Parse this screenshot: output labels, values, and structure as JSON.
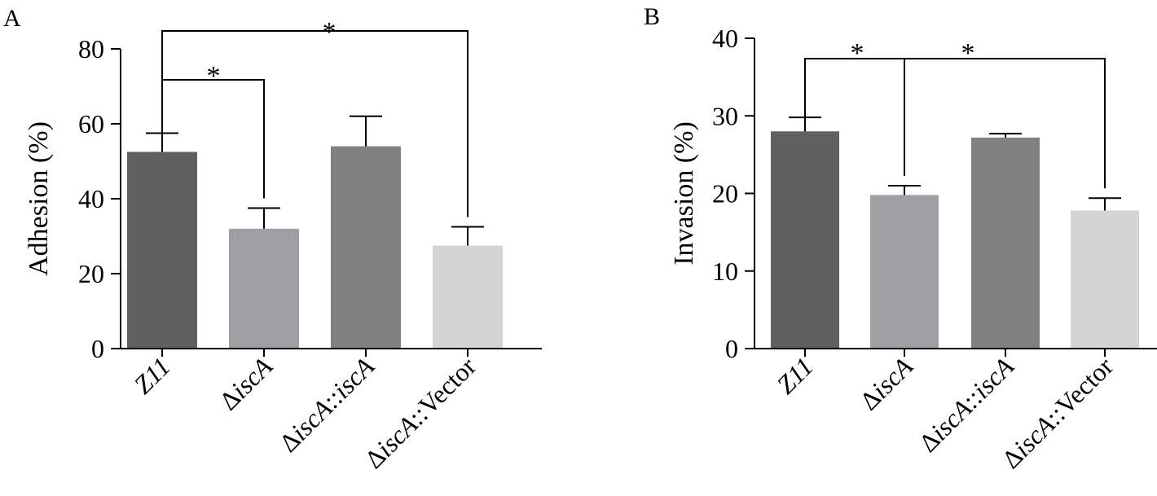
{
  "chart_data": [
    {
      "type": "bar",
      "panel_label": "A",
      "ylabel": "Adhesion (%)",
      "ylim": [
        0,
        80
      ],
      "yticks": [
        0,
        20,
        40,
        60,
        80
      ],
      "categories": [
        "Z11",
        "ΔiscA",
        "ΔiscA::iscA",
        "ΔiscA::Vector"
      ],
      "values": [
        52.5,
        32,
        54,
        27.5
      ],
      "errors": [
        5,
        5.5,
        8,
        5
      ],
      "colors": [
        "#606060",
        "#a0a0a4",
        "#808080",
        "#d4d4d4"
      ],
      "significance": [
        {
          "from": 0,
          "to": 1,
          "label": "*"
        },
        {
          "from": 0,
          "to": 3,
          "label": "*"
        }
      ]
    },
    {
      "type": "bar",
      "panel_label": "B",
      "ylabel": "Invasion (%)",
      "ylim": [
        0,
        40
      ],
      "yticks": [
        0,
        10,
        20,
        30,
        40
      ],
      "categories": [
        "Z11",
        "ΔiscA",
        "ΔiscA::iscA",
        "ΔiscA::Vector"
      ],
      "values": [
        28,
        19.8,
        27.2,
        17.8
      ],
      "errors": [
        1.8,
        1.2,
        0.5,
        1.6
      ],
      "colors": [
        "#606060",
        "#a0a0a4",
        "#808080",
        "#d4d4d4"
      ],
      "significance": [
        {
          "from": 0,
          "to": 1,
          "label": "*"
        },
        {
          "from": 0,
          "to": 3,
          "label": "*"
        }
      ]
    }
  ]
}
